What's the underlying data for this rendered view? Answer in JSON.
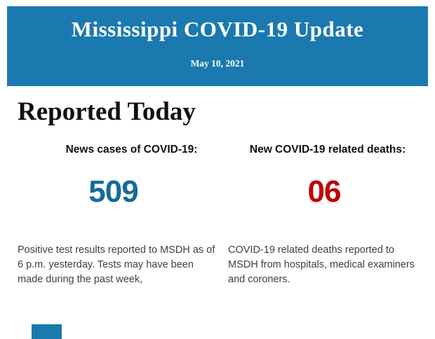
{
  "banner": {
    "title": "Mississippi COVID-19 Update",
    "date": "May 10, 2021",
    "bg_color": "#1a79af",
    "text_color": "#ffffff"
  },
  "section": {
    "heading": "Reported Today"
  },
  "stats": [
    {
      "label": "News cases of COVID-19:",
      "value": "509",
      "value_color": "#17699b",
      "description": "Positive test results reported to MSDH as of 6 p.m. yesterday. Tests may have been made during the past week,"
    },
    {
      "label": "New COVID-19 related deaths:",
      "value": "06",
      "value_color": "#c00000",
      "description": "COVID-19 related deaths reported to MSDH from hospitals, medical examiners and coroners."
    }
  ],
  "footer": {
    "peek_color": "#1a79af"
  }
}
